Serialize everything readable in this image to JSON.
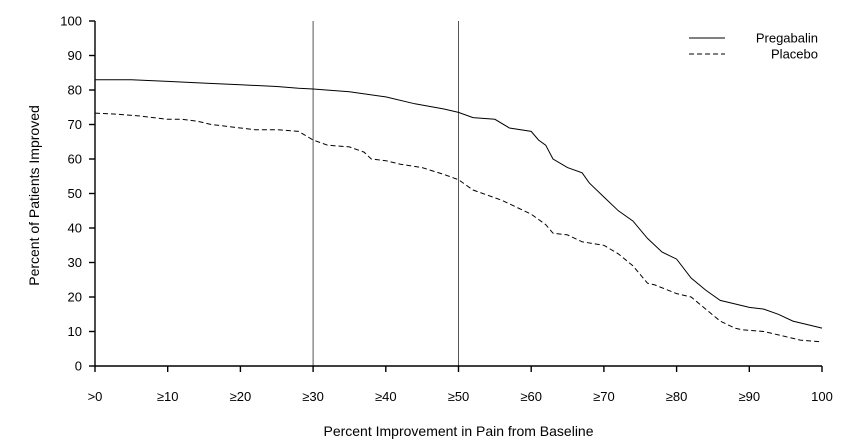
{
  "chart_data": {
    "type": "line",
    "title": "",
    "xlabel": "Percent Improvement in Pain from Baseline",
    "ylabel": "Percent of Patients Improved",
    "xlim": [
      0,
      100
    ],
    "ylim": [
      0,
      100
    ],
    "x_ticks": [
      0,
      10,
      20,
      30,
      40,
      50,
      60,
      70,
      80,
      90,
      100
    ],
    "x_tick_labels": [
      ">0",
      "≥10",
      "≥20",
      "≥30",
      "≥40",
      "≥50",
      "≥60",
      "≥70",
      "≥80",
      "≥90",
      "100"
    ],
    "y_ticks": [
      0,
      10,
      20,
      30,
      40,
      50,
      60,
      70,
      80,
      90,
      100
    ],
    "y_tick_labels": [
      "0",
      "10",
      "20",
      "30",
      "40",
      "50",
      "60",
      "70",
      "80",
      "90",
      "100"
    ],
    "reference_lines_x": [
      30,
      50
    ],
    "grid": false,
    "legend_position": "top-right",
    "series": [
      {
        "name": "Pregabalin",
        "style": "solid",
        "color": "#000000",
        "x": [
          0,
          5,
          10,
          15,
          20,
          25,
          28,
          30,
          35,
          40,
          44,
          48,
          50,
          52,
          55,
          57,
          60,
          61,
          62,
          63,
          65,
          67,
          68,
          70,
          72,
          74,
          76,
          78,
          80,
          82,
          84,
          86,
          88,
          90,
          92,
          94,
          96,
          98,
          100
        ],
        "y": [
          83,
          83,
          82.5,
          82,
          81.5,
          81,
          80.5,
          80.3,
          79.5,
          78,
          76,
          74.5,
          73.5,
          72,
          71.5,
          69,
          68,
          65.5,
          64,
          60,
          57.5,
          56,
          53,
          49,
          45,
          42,
          37,
          33,
          31,
          25.5,
          22,
          19,
          18,
          17,
          16.5,
          15,
          13,
          12,
          11
        ]
      },
      {
        "name": "Placebo",
        "style": "dashed",
        "color": "#000000",
        "x": [
          0,
          3,
          6,
          8,
          10,
          12,
          14,
          16,
          18,
          20,
          22,
          25,
          28,
          30,
          32,
          35,
          37,
          38,
          40,
          42,
          45,
          48,
          50,
          52,
          54,
          56,
          58,
          60,
          62,
          63,
          65,
          67,
          70,
          72,
          74,
          76,
          77,
          80,
          82,
          84,
          86,
          88,
          89,
          92,
          94,
          97,
          100
        ],
        "y": [
          73.3,
          73,
          72.5,
          72,
          71.5,
          71.5,
          71,
          70,
          69.5,
          69,
          68.5,
          68.5,
          68,
          65.5,
          64,
          63.5,
          62,
          60,
          59.5,
          58.5,
          57.5,
          55.5,
          54,
          51,
          49.5,
          48,
          46,
          44,
          41,
          38.5,
          38,
          36,
          35,
          32.5,
          29,
          24,
          23.5,
          21,
          20,
          16.5,
          13,
          11,
          10.5,
          10,
          9,
          7.5,
          7
        ]
      }
    ]
  }
}
